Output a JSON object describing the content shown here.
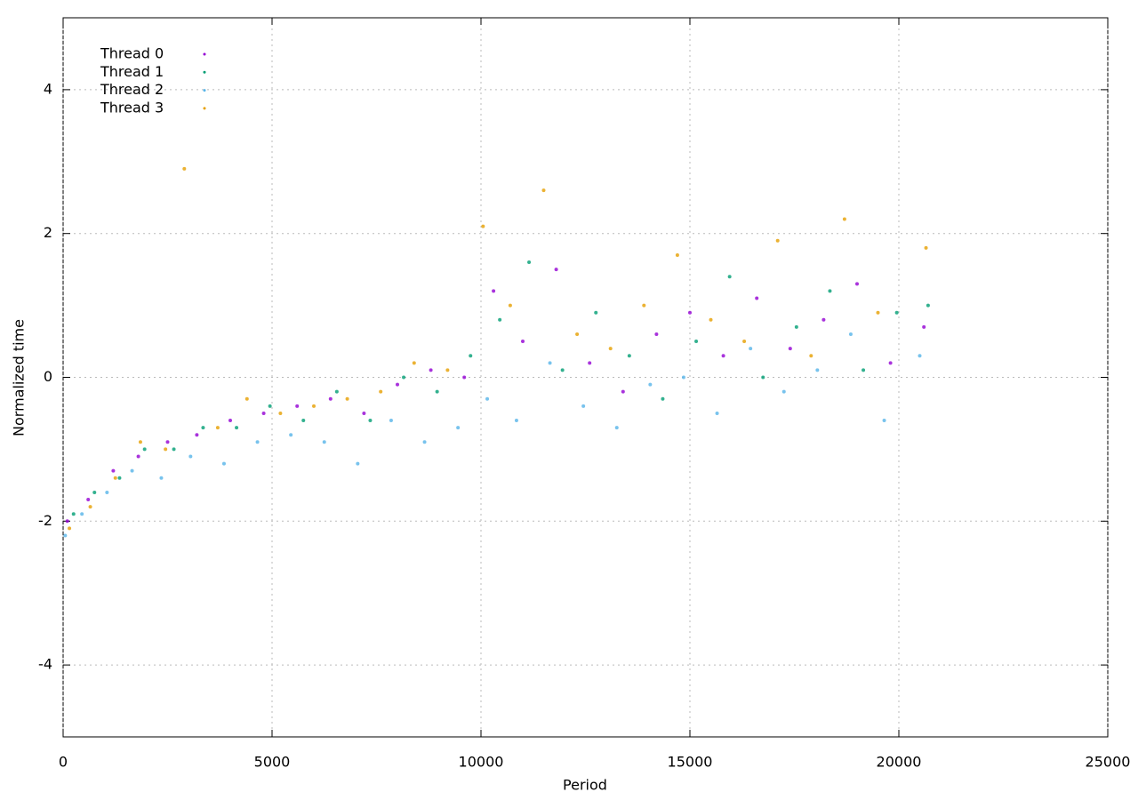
{
  "chart_data": {
    "type": "scatter",
    "x_label": "Period",
    "y_label": "Normalized time",
    "xlim": [
      0,
      25000
    ],
    "xticks": [
      0,
      5000,
      10000,
      15000,
      20000,
      25000
    ],
    "ylim": [
      -5,
      5
    ],
    "yticks": [
      -4,
      -2,
      0,
      2,
      4
    ],
    "grid": true,
    "legend": "top-left",
    "series": [
      {
        "name": "Thread 0",
        "color": "#9400d3",
        "x": [
          100,
          600,
          1200,
          1800,
          2500,
          3200,
          4000,
          4800,
          5600,
          6400,
          7200,
          8000,
          8800,
          9600,
          10300,
          11000,
          11800,
          12600,
          13400,
          14200,
          15000,
          15800,
          16600,
          17400,
          18200,
          19000,
          19800,
          20600
        ],
        "values": [
          -2.0,
          -1.7,
          -1.3,
          -1.1,
          -0.9,
          -0.8,
          -0.6,
          -0.5,
          -0.4,
          -0.3,
          -0.5,
          -0.1,
          0.1,
          0.0,
          1.2,
          0.5,
          1.5,
          0.2,
          -0.2,
          0.6,
          0.9,
          0.3,
          1.1,
          0.4,
          0.8,
          1.3,
          0.2,
          0.7
        ]
      },
      {
        "name": "Thread 1",
        "color": "#009e73",
        "x": [
          250,
          750,
          1350,
          1950,
          2650,
          3350,
          4150,
          4950,
          5750,
          6550,
          7350,
          8150,
          8950,
          9750,
          10450,
          11150,
          11950,
          12750,
          13550,
          14350,
          15150,
          15950,
          16750,
          17550,
          18350,
          19150,
          19950,
          20700
        ],
        "values": [
          -1.9,
          -1.6,
          -1.4,
          -1.0,
          -1.0,
          -0.7,
          -0.7,
          -0.4,
          -0.6,
          -0.2,
          -0.6,
          0.0,
          -0.2,
          0.3,
          0.8,
          1.6,
          0.1,
          0.9,
          0.3,
          -0.3,
          0.5,
          1.4,
          0.0,
          0.7,
          1.2,
          0.1,
          0.9,
          1.0
        ]
      },
      {
        "name": "Thread 2",
        "color": "#56b4e9",
        "x": [
          50,
          450,
          1050,
          1650,
          2350,
          3050,
          3850,
          4650,
          5450,
          6250,
          7050,
          7850,
          8650,
          9450,
          10150,
          10850,
          11650,
          12450,
          13250,
          14050,
          14850,
          15650,
          16450,
          17250,
          18050,
          18850,
          19650,
          20500
        ],
        "values": [
          -2.2,
          -1.9,
          -1.6,
          -1.3,
          -1.4,
          -1.1,
          -1.2,
          -0.9,
          -0.8,
          -0.9,
          -1.2,
          -0.6,
          -0.9,
          -0.7,
          -0.3,
          -0.6,
          0.2,
          -0.4,
          -0.7,
          -0.1,
          0.0,
          -0.5,
          0.4,
          -0.2,
          0.1,
          0.6,
          -0.6,
          0.3
        ]
      },
      {
        "name": "Thread 3",
        "color": "#e69f00",
        "x": [
          150,
          650,
          1250,
          1850,
          2450,
          2900,
          3700,
          4400,
          5200,
          6000,
          6800,
          7600,
          8400,
          9200,
          10050,
          10700,
          11500,
          12300,
          13100,
          13900,
          14700,
          15500,
          16300,
          17100,
          17900,
          18700,
          19500,
          20650
        ],
        "values": [
          -2.1,
          -1.8,
          -1.4,
          -0.9,
          -1.0,
          2.9,
          -0.7,
          -0.3,
          -0.5,
          -0.4,
          -0.3,
          -0.2,
          0.2,
          0.1,
          2.1,
          1.0,
          2.6,
          0.6,
          0.4,
          1.0,
          1.7,
          0.8,
          0.5,
          1.9,
          0.3,
          2.2,
          0.9,
          1.8
        ]
      }
    ]
  }
}
